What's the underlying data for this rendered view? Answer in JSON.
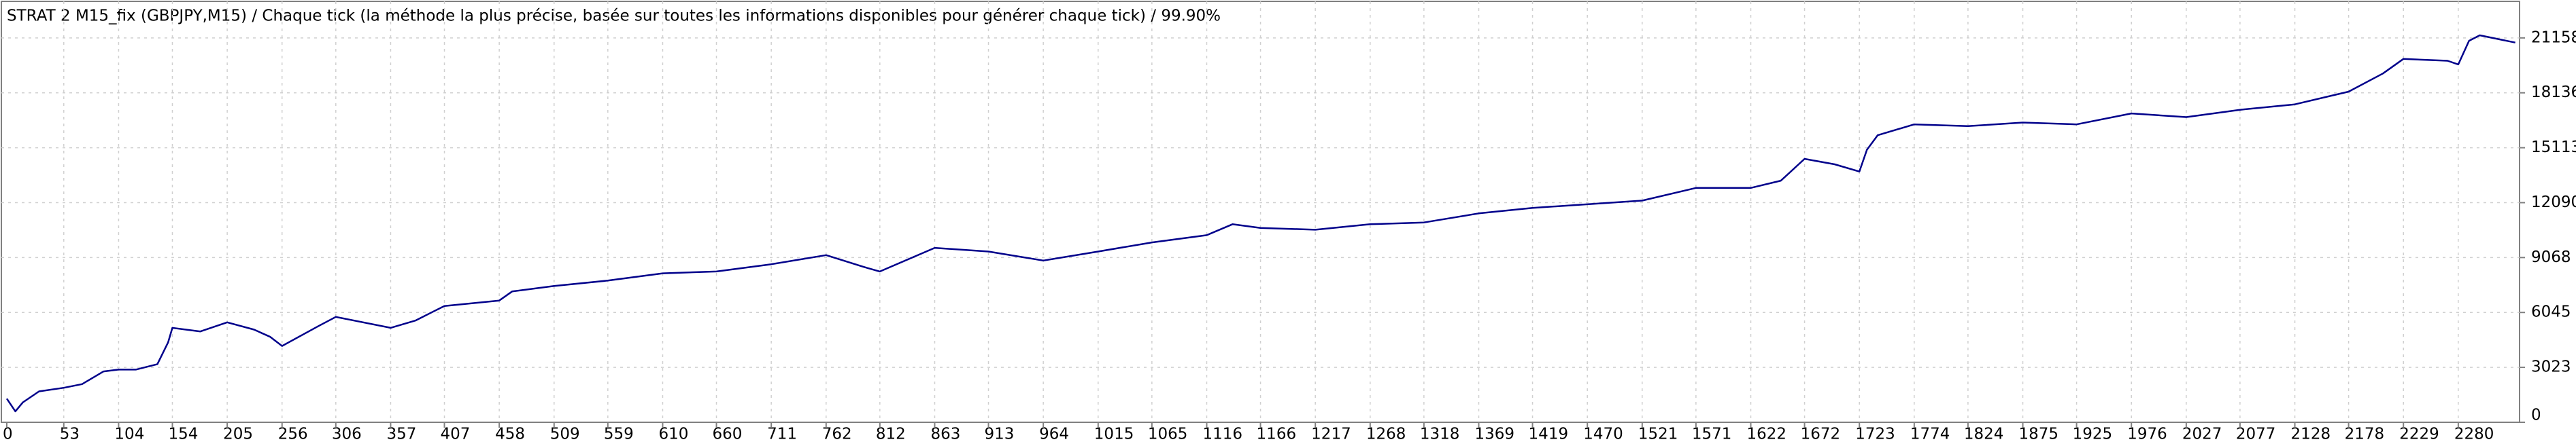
{
  "chart_data": {
    "type": "line",
    "title": "STRAT 2 M15_fix (GBPJPY,M15) / Chaque tick (la méthode la plus précise, basée sur toutes les informations disponibles pour générer chaque tick) / 99.90%",
    "x": [
      0,
      8,
      15,
      30,
      53,
      70,
      90,
      104,
      120,
      140,
      150,
      154,
      180,
      205,
      230,
      245,
      256,
      290,
      306,
      357,
      380,
      407,
      458,
      470,
      509,
      559,
      610,
      660,
      711,
      762,
      800,
      812,
      863,
      913,
      964,
      1015,
      1065,
      1116,
      1140,
      1166,
      1217,
      1268,
      1318,
      1369,
      1419,
      1470,
      1521,
      1571,
      1622,
      1650,
      1672,
      1700,
      1723,
      1730,
      1740,
      1774,
      1824,
      1875,
      1925,
      1976,
      2027,
      2077,
      2128,
      2178,
      2210,
      2229,
      2270,
      2280,
      2290,
      2300,
      2333
    ],
    "values": [
      1300,
      600,
      1100,
      1700,
      1900,
      2100,
      2800,
      2900,
      2900,
      3200,
      4400,
      5200,
      5000,
      5500,
      5100,
      4700,
      4200,
      5300,
      5800,
      5200,
      5600,
      6400,
      6700,
      7200,
      7500,
      7800,
      8200,
      8300,
      8700,
      9200,
      8500,
      8300,
      9600,
      9400,
      8900,
      9400,
      9900,
      10300,
      10900,
      10700,
      10600,
      10900,
      11000,
      11500,
      11800,
      12000,
      12200,
      12900,
      12900,
      13300,
      14500,
      14200,
      13800,
      15000,
      15800,
      16400,
      16300,
      16500,
      16400,
      17000,
      16800,
      17200,
      17500,
      18200,
      19200,
      20000,
      19900,
      19700,
      21000,
      21300,
      20900
    ],
    "color": "#00008b",
    "xlim": [
      0,
      2337
    ],
    "ylim": [
      0,
      23170
    ],
    "xticks": [
      0,
      53,
      104,
      154,
      205,
      256,
      306,
      357,
      407,
      458,
      509,
      559,
      610,
      660,
      711,
      762,
      812,
      863,
      913,
      964,
      1015,
      1065,
      1116,
      1166,
      1217,
      1268,
      1318,
      1369,
      1419,
      1470,
      1521,
      1571,
      1622,
      1672,
      1723,
      1774,
      1824,
      1875,
      1925,
      1976,
      2027,
      2077,
      2128,
      2178,
      2229,
      2280
    ],
    "yticks": [
      0,
      3023,
      6045,
      9068,
      12090,
      15113,
      18136,
      21158
    ],
    "grid": true
  }
}
